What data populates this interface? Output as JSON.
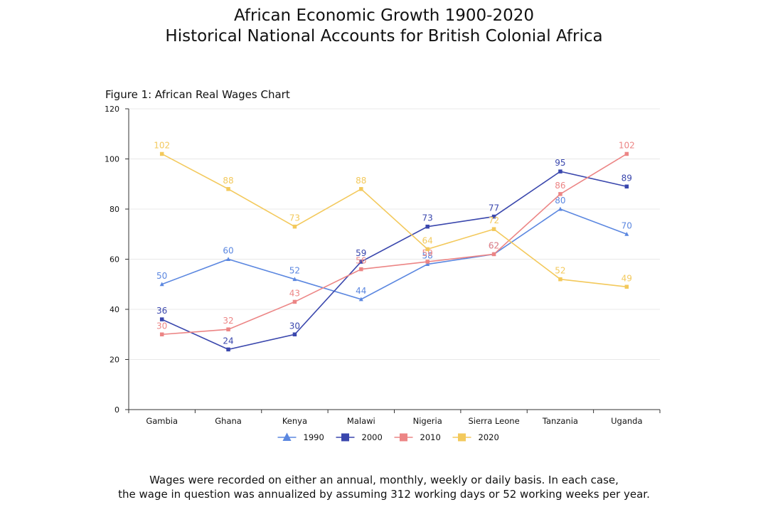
{
  "header": {
    "title_line1": "African Economic Growth 1900-2020",
    "title_line2": "Historical National Accounts for British Colonial Africa"
  },
  "footnote": {
    "line1": "Wages were recorded on either an annual, monthly, weekly or daily basis. In each case,",
    "line2": "the wage in question was annualized by assuming 312 working days or 52 working weeks per year."
  },
  "chart_data": {
    "type": "line",
    "title": "Figure 1: African Real Wages Chart",
    "xlabel": "",
    "ylabel": "",
    "categories": [
      "Gambia",
      "Ghana",
      "Kenya",
      "Malawi",
      "Nigeria",
      "Sierra Leone",
      "Tanzania",
      "Uganda"
    ],
    "ylim": [
      0,
      120
    ],
    "yticks": [
      0,
      20,
      40,
      60,
      80,
      100,
      120
    ],
    "grid": true,
    "legend_position": "bottom",
    "series": [
      {
        "name": "1990",
        "color": "#5b87e0",
        "marker": "triangle",
        "values": [
          50,
          60,
          52,
          44,
          58,
          62,
          80,
          70
        ]
      },
      {
        "name": "2000",
        "color": "#3a47ad",
        "marker": "square",
        "values": [
          36,
          24,
          30,
          59,
          73,
          77,
          95,
          89
        ]
      },
      {
        "name": "2010",
        "color": "#ec8585",
        "marker": "square",
        "values": [
          30,
          32,
          43,
          56,
          59,
          62,
          86,
          102
        ]
      },
      {
        "name": "2020",
        "color": "#f3c95c",
        "marker": "square",
        "values": [
          102,
          88,
          73,
          88,
          64,
          72,
          52,
          49
        ]
      }
    ]
  }
}
